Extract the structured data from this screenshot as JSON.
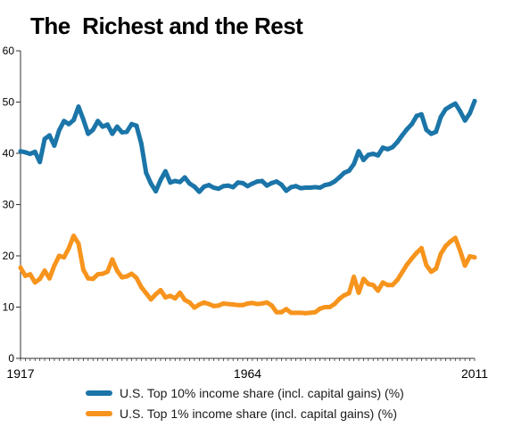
{
  "chart_data": {
    "type": "line",
    "title": "The  Richest and the Rest",
    "xlabel": "",
    "ylabel": "",
    "x_tick_labels": [
      "1917",
      "1964",
      "2011"
    ],
    "xlim": [
      1917,
      2011
    ],
    "ylim": [
      0,
      60
    ],
    "y_ticks": [
      0,
      10,
      20,
      30,
      40,
      50,
      60
    ],
    "grid": false,
    "legend_position": "bottom",
    "x": [
      1917,
      1918,
      1919,
      1920,
      1921,
      1922,
      1923,
      1924,
      1925,
      1926,
      1927,
      1928,
      1929,
      1930,
      1931,
      1932,
      1933,
      1934,
      1935,
      1936,
      1937,
      1938,
      1939,
      1940,
      1941,
      1942,
      1943,
      1944,
      1945,
      1946,
      1947,
      1948,
      1949,
      1950,
      1951,
      1952,
      1953,
      1954,
      1955,
      1956,
      1957,
      1958,
      1959,
      1960,
      1961,
      1962,
      1963,
      1964,
      1965,
      1966,
      1967,
      1968,
      1969,
      1970,
      1971,
      1972,
      1973,
      1974,
      1975,
      1976,
      1977,
      1978,
      1979,
      1980,
      1981,
      1982,
      1983,
      1984,
      1985,
      1986,
      1987,
      1988,
      1989,
      1990,
      1991,
      1992,
      1993,
      1994,
      1995,
      1996,
      1997,
      1998,
      1999,
      2000,
      2001,
      2002,
      2003,
      2004,
      2005,
      2006,
      2007,
      2008,
      2009,
      2010,
      2011
    ],
    "series": [
      {
        "name": "U.S. Top 10% income share (incl. capital gains) (%)",
        "color": "#1b75a8",
        "values": [
          40.4,
          40.2,
          39.9,
          40.3,
          38.3,
          42.8,
          43.5,
          41.5,
          44.5,
          46.3,
          45.7,
          46.5,
          49.1,
          46.6,
          43.8,
          44.6,
          46.3,
          45.2,
          45.6,
          43.8,
          45.2,
          44.1,
          44.2,
          45.7,
          45.4,
          41.9,
          36.2,
          34.1,
          32.6,
          34.8,
          36.5,
          34.3,
          34.6,
          34.4,
          35.3,
          34.1,
          33.5,
          32.5,
          33.5,
          33.8,
          33.3,
          33.1,
          33.6,
          33.7,
          33.4,
          34.3,
          34.2,
          33.6,
          34.1,
          34.5,
          34.6,
          33.7,
          34.2,
          34.5,
          33.9,
          32.7,
          33.4,
          33.6,
          33.2,
          33.3,
          33.3,
          33.4,
          33.3,
          33.8,
          34.0,
          34.5,
          35.3,
          36.2,
          36.6,
          37.9,
          40.4,
          38.7,
          39.7,
          39.9,
          39.6,
          41.1,
          40.8,
          41.2,
          42.2,
          43.5,
          44.7,
          45.7,
          47.3,
          47.6,
          44.6,
          43.8,
          44.2,
          47.1,
          48.6,
          49.2,
          49.7,
          48.2,
          46.4,
          47.8,
          50.2
        ]
      },
      {
        "name": "U.S. Top 1% income share (incl. capital gains) (%)",
        "color": "#f7941d",
        "values": [
          17.7,
          16.1,
          16.4,
          14.8,
          15.5,
          17.1,
          15.6,
          18.1,
          20.0,
          19.7,
          21.5,
          23.9,
          22.4,
          17.3,
          15.6,
          15.5,
          16.4,
          16.5,
          16.9,
          19.3,
          17.1,
          15.8,
          16.0,
          16.5,
          15.7,
          13.9,
          12.7,
          11.5,
          12.5,
          13.3,
          11.9,
          12.2,
          11.7,
          12.8,
          11.4,
          10.9,
          9.9,
          10.5,
          10.9,
          10.6,
          10.2,
          10.3,
          10.7,
          10.6,
          10.5,
          10.4,
          10.4,
          10.7,
          10.8,
          10.6,
          10.7,
          10.9,
          10.3,
          9.0,
          9.0,
          9.6,
          8.9,
          8.9,
          8.9,
          8.8,
          8.9,
          9.0,
          9.7,
          10.0,
          10.0,
          10.6,
          11.6,
          12.3,
          12.7,
          15.9,
          12.8,
          15.5,
          14.5,
          14.3,
          13.2,
          14.8,
          14.3,
          14.3,
          15.3,
          16.8,
          18.3,
          19.5,
          20.6,
          21.5,
          18.2,
          16.9,
          17.5,
          20.4,
          21.9,
          22.8,
          23.5,
          21.0,
          18.1,
          19.9,
          19.7
        ]
      }
    ]
  }
}
